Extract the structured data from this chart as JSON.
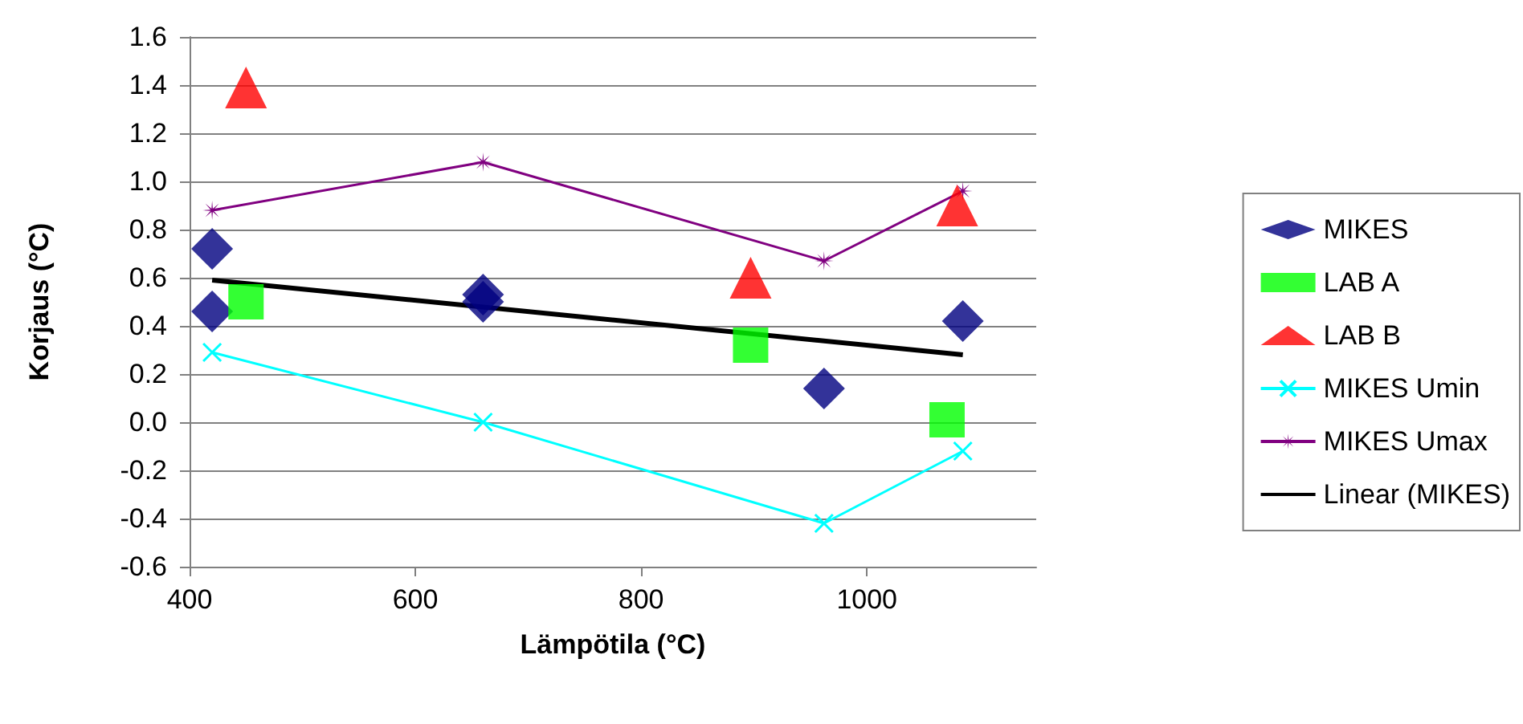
{
  "chart_data": {
    "type": "scatter",
    "xlabel": "Lämpötila (°C)",
    "ylabel": "Korjaus (°C)",
    "xlim": [
      400,
      1150
    ],
    "xticks": [
      400,
      600,
      800,
      1000
    ],
    "ylim": [
      -0.6,
      1.6
    ],
    "yticks": [
      -0.6,
      -0.4,
      -0.2,
      {
        "value": 0,
        "label": "0.0"
      },
      0.2,
      0.4,
      0.6,
      0.8,
      {
        "value": 1,
        "label": "1.0"
      },
      1.2,
      1.4,
      1.6
    ],
    "grid": "y",
    "legend": "right",
    "series": [
      {
        "name": "MIKES",
        "marker": "diamond",
        "color": "#000080",
        "x": [
          420,
          420,
          660,
          660,
          962,
          1085
        ],
        "values": [
          0.72,
          0.46,
          0.53,
          0.5,
          0.14,
          0.42
        ]
      },
      {
        "name": "LAB A",
        "marker": "square",
        "color": "#00ff00",
        "x": [
          450,
          897,
          1071
        ],
        "values": [
          0.5,
          0.32,
          0.01
        ]
      },
      {
        "name": "LAB B",
        "marker": "triangle",
        "color": "#ff0000",
        "x": [
          450,
          897,
          1080
        ],
        "values": [
          1.39,
          0.6,
          0.9
        ]
      },
      {
        "name": "MIKES Umin",
        "type": "line",
        "marker": "cross",
        "color": "#00ffff",
        "x": [
          420,
          660,
          962,
          1085
        ],
        "values": [
          0.29,
          0.0,
          -0.42,
          -0.12
        ]
      },
      {
        "name": "MIKES Umax",
        "type": "line",
        "marker": "star",
        "color": "#800080",
        "x": [
          420,
          660,
          962,
          1085
        ],
        "values": [
          0.88,
          1.08,
          0.67,
          0.96
        ]
      },
      {
        "name": "Linear (MIKES)",
        "type": "line",
        "marker": "none",
        "color": "#000000",
        "x": [
          420,
          1085
        ],
        "values": [
          0.59,
          0.28
        ]
      }
    ]
  }
}
